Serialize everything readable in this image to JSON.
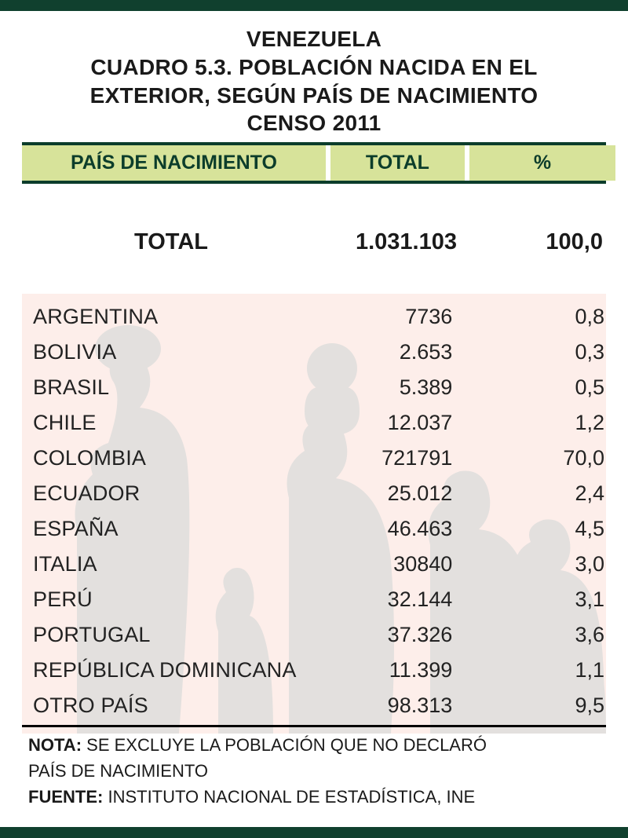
{
  "colors": {
    "frame_border": "#10402e",
    "header_rule": "#0c3d2b",
    "header_fill": "#d7e39a",
    "header_text": "#0c3d2b",
    "body_text": "#1a1a1a",
    "backdrop_fill": "#fdeeea",
    "silhouette": "#e3e0de",
    "page_bg": "#ffffff",
    "footer_rule": "#000000"
  },
  "typography": {
    "title_fontsize": 28,
    "header_fontsize": 25,
    "total_fontsize": 29,
    "row_fontsize": 27,
    "footer_fontsize": 22,
    "title_weight": 700,
    "row_weight": 400
  },
  "title": {
    "line1": "VENEZUELA",
    "line2": "CUADRO 5.3. POBLACIÓN NACIDA EN EL",
    "line3": "EXTERIOR, SEGÚN PAÍS DE NACIMIENTO",
    "line4": "CENSO 2011"
  },
  "table": {
    "type": "table",
    "columns": [
      {
        "key": "country",
        "label": "PAÍS DE NACIMIENTO",
        "width_pct": 52,
        "align": "left"
      },
      {
        "key": "total",
        "label": "TOTAL",
        "width_pct": 23,
        "align": "right"
      },
      {
        "key": "pct",
        "label": "%",
        "width_pct": 25,
        "align": "right"
      }
    ],
    "grand_total": {
      "label": "TOTAL",
      "total": "1.031.103",
      "pct": "100,0"
    },
    "rows": [
      {
        "country": "ARGENTINA",
        "total": "7736",
        "pct": "0,8"
      },
      {
        "country": "BOLIVIA",
        "total": "2.653",
        "pct": "0,3"
      },
      {
        "country": "BRASIL",
        "total": "5.389",
        "pct": "0,5"
      },
      {
        "country": "CHILE",
        "total": "12.037",
        "pct": "1,2"
      },
      {
        "country": "COLOMBIA",
        "total": "721791",
        "pct": "70,0"
      },
      {
        "country": "ECUADOR",
        "total": "25.012",
        "pct": "2,4"
      },
      {
        "country": "ESPAÑA",
        "total": "46.463",
        "pct": "4,5"
      },
      {
        "country": "ITALIA",
        "total": "30840",
        "pct": "3,0"
      },
      {
        "country": "PERÚ",
        "total": "32.144",
        "pct": "3,1"
      },
      {
        "country": "PORTUGAL",
        "total": "37.326",
        "pct": "3,6"
      },
      {
        "country": "REPÚBLICA  DOMINICANA",
        "total": "11.399",
        "pct": "1,1"
      },
      {
        "country": "OTRO PAÍS",
        "total": "98.313",
        "pct": "9,5"
      }
    ]
  },
  "footer": {
    "note_label": "NOTA:",
    "note_text_a": "SE EXCLUYE LA POBLACIÓN QUE NO DECLARÓ",
    "note_text_b": "PAÍS DE NACIMIENTO",
    "source_label": "FUENTE:",
    "source_text": "INSTITUTO NACIONAL DE ESTADÍSTICA, INE"
  }
}
